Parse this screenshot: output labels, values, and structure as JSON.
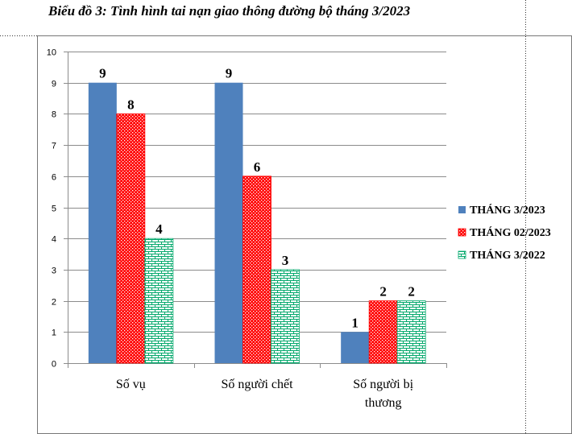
{
  "chart_data": {
    "type": "bar",
    "title": "Biểu đồ 3: Tình hình tai nạn giao thông đường bộ tháng 3/2023",
    "xlabel": "",
    "ylabel": "",
    "ylim": [
      0,
      10
    ],
    "yticks": [
      "0",
      "1",
      "2",
      "3",
      "4",
      "5",
      "6",
      "7",
      "8",
      "9",
      "10"
    ],
    "categories": [
      [
        "Số vụ"
      ],
      [
        "Số người  chết"
      ],
      [
        "Số người  bị",
        "thương"
      ]
    ],
    "series": [
      {
        "name": "THÁNG 3/2023",
        "values": [
          9,
          9,
          1
        ],
        "labels": [
          "9",
          "9",
          "1"
        ],
        "color": "#4F81BD",
        "pattern": "solid"
      },
      {
        "name": "THÁNG 02/2023",
        "values": [
          8,
          6,
          2
        ],
        "labels": [
          "8",
          "6",
          "2"
        ],
        "color": "#FF0000",
        "pattern": "dots"
      },
      {
        "name": "THÁNG 3/2022",
        "values": [
          4,
          3,
          2
        ],
        "labels": [
          "4",
          "3",
          "2"
        ],
        "color": "#00A86B",
        "pattern": "brick"
      }
    ],
    "grid": true,
    "legend": "right"
  }
}
